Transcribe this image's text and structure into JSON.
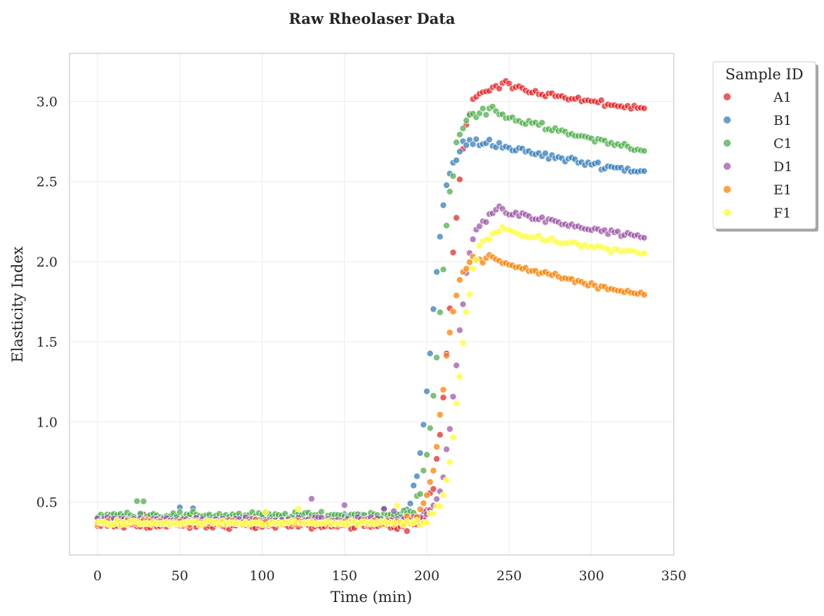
{
  "chart_data": {
    "type": "scatter",
    "title": "Raw Rheolaser Data",
    "xlabel": "Time (min)",
    "ylabel": "Elasticity Index",
    "xlim": [
      -17,
      350
    ],
    "ylim": [
      0.17,
      3.3
    ],
    "xticks": [
      0,
      50,
      100,
      150,
      200,
      250,
      300,
      350
    ],
    "yticks": [
      0.5,
      1.0,
      1.5,
      2.0,
      2.5,
      3.0
    ],
    "grid": true,
    "legend": {
      "title": "Sample ID",
      "position": "outside-top-right"
    },
    "time_step_min": 2,
    "series": [
      {
        "name": "A1",
        "color": "#e41a1c",
        "alpha": 0.7,
        "profile": {
          "baseline": 0.35,
          "onset": 186,
          "midpoint": 214,
          "peak": 3.1,
          "peak_time": 252,
          "final": 2.95,
          "end_time": 332,
          "noise": 0.025
        }
      },
      {
        "name": "B1",
        "color": "#377eb8",
        "alpha": 0.75,
        "profile": {
          "baseline": 0.4,
          "onset": 182,
          "midpoint": 203,
          "peak": 2.75,
          "peak_time": 238,
          "final": 2.56,
          "end_time": 332,
          "noise": 0.03
        }
      },
      {
        "name": "C1",
        "color": "#4daf4a",
        "alpha": 0.75,
        "profile": {
          "baseline": 0.42,
          "onset": 184,
          "midpoint": 208,
          "peak": 2.95,
          "peak_time": 240,
          "final": 2.7,
          "end_time": 332,
          "noise": 0.03
        }
      },
      {
        "name": "D1",
        "color": "#984ea3",
        "alpha": 0.7,
        "profile": {
          "baseline": 0.39,
          "onset": 190,
          "midpoint": 218,
          "peak": 2.32,
          "peak_time": 250,
          "final": 2.15,
          "end_time": 332,
          "noise": 0.025
        }
      },
      {
        "name": "E1",
        "color": "#ff7f00",
        "alpha": 0.75,
        "profile": {
          "baseline": 0.37,
          "onset": 186,
          "midpoint": 210,
          "peak": 2.04,
          "peak_time": 238,
          "final": 1.79,
          "end_time": 332,
          "noise": 0.025
        }
      },
      {
        "name": "F1",
        "color": "#ffff33",
        "alpha": 0.8,
        "profile": {
          "baseline": 0.37,
          "onset": 192,
          "midpoint": 220,
          "peak": 2.2,
          "peak_time": 246,
          "final": 2.05,
          "end_time": 332,
          "noise": 0.02
        }
      }
    ]
  }
}
